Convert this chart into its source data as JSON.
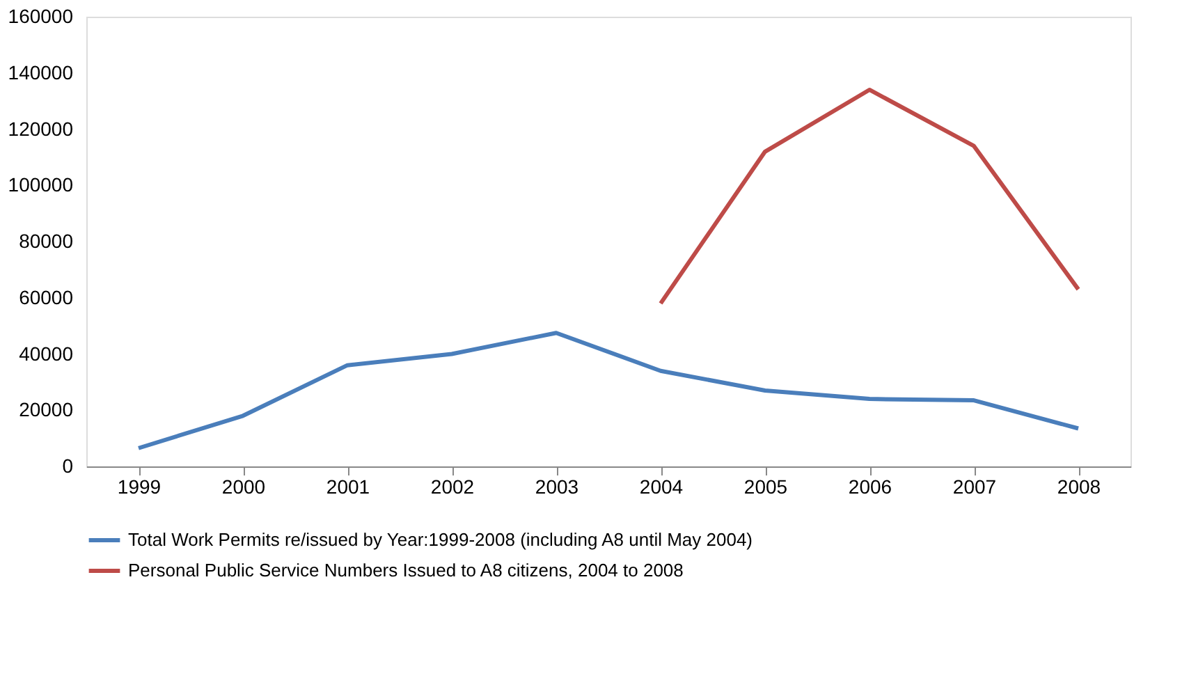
{
  "chart_data": {
    "type": "line",
    "categories": [
      "1999",
      "2000",
      "2001",
      "2002",
      "2003",
      "2004",
      "2005",
      "2006",
      "2007",
      "2008"
    ],
    "series": [
      {
        "name": "Total Work Permits re/issued by Year:1999-2008 (including A8 until May 2004)",
        "color": "#4a7ebb",
        "values": [
          6500,
          18000,
          36000,
          40000,
          47500,
          34000,
          27000,
          24000,
          23500,
          13500
        ]
      },
      {
        "name": "Personal Public Service Numbers Issued to A8 citizens, 2004 to 2008",
        "color": "#be4b48",
        "values": [
          null,
          null,
          null,
          null,
          null,
          58000,
          112000,
          134000,
          114000,
          63000
        ]
      }
    ],
    "ylim": [
      0,
      160000
    ],
    "yticks": [
      0,
      20000,
      40000,
      60000,
      80000,
      100000,
      120000,
      140000,
      160000
    ],
    "grid": false,
    "legend": "bottom",
    "marker": "none",
    "line_style": "solid"
  }
}
